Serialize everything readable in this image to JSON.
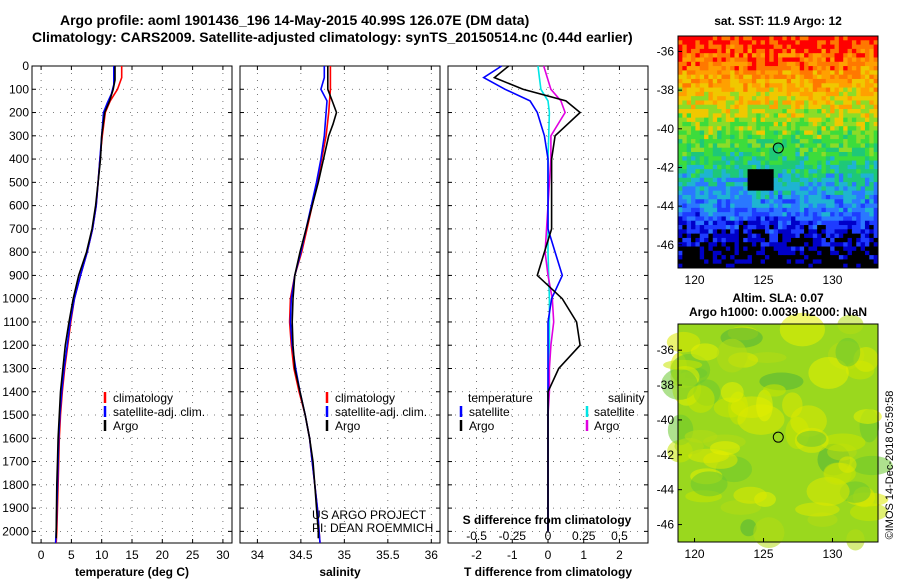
{
  "header": {
    "title_line1": "Argo profile: aoml 1901436_196 14-May-2015 40.99S 126.07E (DM data)",
    "title_line2": "Climatology: CARS2009. Satellite-adjusted climatology: synTS_20150514.nc (0.44d earlier)"
  },
  "depth_axis": {
    "ticks": [
      0,
      100,
      200,
      300,
      400,
      500,
      600,
      700,
      800,
      900,
      1000,
      1100,
      1200,
      1300,
      1400,
      1500,
      1600,
      1700,
      1800,
      1900,
      2000
    ],
    "range": [
      0,
      2050
    ],
    "inverted": true
  },
  "panels": {
    "temperature": {
      "xlabel": "temperature (deg C)",
      "xlim": [
        -1.5,
        31.5
      ],
      "xticks": [
        0,
        5,
        10,
        15,
        20,
        25,
        30
      ],
      "legend": [
        "climatology",
        "satellite-adj. clim.",
        "Argo"
      ],
      "credit_line1": "",
      "credit_line2": ""
    },
    "salinity": {
      "xlabel": "salinity",
      "xlim": [
        33.8,
        36.1
      ],
      "xticks": [
        34,
        34.5,
        35,
        35.5,
        36
      ],
      "legend": [
        "climatology",
        "satellite-adj. clim.",
        "Argo"
      ],
      "credit_line1": "US ARGO PROJECT",
      "credit_line2": "PI: DEAN ROEMMICH"
    },
    "difference": {
      "xlabel": "T difference from climatology",
      "xlim": [
        -2.8,
        2.8
      ],
      "xticks": [
        -2,
        -1,
        0,
        1,
        2
      ],
      "top_label": "S difference from climatology",
      "s_ticks": [
        "-0.5",
        "-0.25",
        "0",
        "0.25",
        "0.5"
      ],
      "legend_t_title": "temperature",
      "legend_s_title": "salinity",
      "legend_t": [
        "satellite",
        "Argo"
      ],
      "legend_s": [
        "satellite",
        "Argo"
      ]
    }
  },
  "maps": {
    "sst": {
      "title": "sat. SST: 11.9 Argo: 12",
      "lat_ticks": [
        -36,
        -38,
        -40,
        -42,
        -44,
        -46
      ],
      "lon_ticks": [
        120,
        125,
        130
      ],
      "lat_range": [
        -35.2,
        -47.2
      ],
      "lon_range": [
        118.8,
        133.3
      ],
      "argo_position": {
        "lat": -40.99,
        "lon": 126.07
      }
    },
    "sla": {
      "title_line1": "Altim. SLA: 0.07",
      "title_line2": "Argo h1000: 0.0039 h2000: NaN",
      "lat_ticks": [
        -36,
        -38,
        -40,
        -42,
        -44,
        -46
      ],
      "lon_ticks": [
        120,
        125,
        130
      ],
      "lat_range": [
        -34.5,
        -47
      ],
      "lon_range": [
        118.8,
        133.3
      ],
      "argo_position": {
        "lat": -40.99,
        "lon": 126.07
      }
    }
  },
  "timestamp": "©IMOS 14-Dec-2018 05:59:58",
  "colors": {
    "climatology": "#ff0000",
    "satellite": "#0000ff",
    "argo": "#000000",
    "sat_salinity": "#00e5e5",
    "argo_salinity": "#e000e0"
  },
  "chart_data": [
    {
      "type": "line",
      "title": "",
      "xlabel": "temperature (deg C)",
      "ylabel": "",
      "series": [
        {
          "name": "climatology",
          "points": [
            [
              13.3,
              0
            ],
            [
              13.3,
              50
            ],
            [
              12.6,
              100
            ],
            [
              11.4,
              150
            ],
            [
              10.6,
              200
            ],
            [
              10.1,
              300
            ],
            [
              9.7,
              400
            ],
            [
              9.4,
              500
            ],
            [
              9.1,
              600
            ],
            [
              8.5,
              700
            ],
            [
              7.6,
              800
            ],
            [
              6.5,
              900
            ],
            [
              5.5,
              1000
            ],
            [
              4.9,
              1100
            ],
            [
              4.4,
              1200
            ],
            [
              3.9,
              1300
            ],
            [
              3.5,
              1400
            ],
            [
              3.2,
              1500
            ],
            [
              3.0,
              1600
            ],
            [
              2.8,
              1800
            ],
            [
              2.6,
              2000
            ],
            [
              2.5,
              2050
            ]
          ]
        },
        {
          "name": "satellite-adj. clim.",
          "points": [
            [
              12.0,
              0
            ],
            [
              12.0,
              80
            ],
            [
              11.6,
              120
            ],
            [
              10.9,
              160
            ],
            [
              10.3,
              200
            ],
            [
              10.0,
              300
            ],
            [
              9.7,
              400
            ],
            [
              9.4,
              500
            ],
            [
              9.1,
              600
            ],
            [
              8.5,
              700
            ],
            [
              7.6,
              800
            ],
            [
              6.5,
              900
            ],
            [
              5.5,
              1000
            ],
            [
              4.8,
              1100
            ],
            [
              4.3,
              1200
            ],
            [
              3.8,
              1300
            ],
            [
              3.4,
              1400
            ],
            [
              3.1,
              1500
            ],
            [
              2.9,
              1600
            ],
            [
              2.7,
              1800
            ],
            [
              2.5,
              2000
            ],
            [
              2.4,
              2050
            ]
          ]
        },
        {
          "name": "Argo",
          "points": [
            [
              12.2,
              0
            ],
            [
              12.2,
              60
            ],
            [
              11.9,
              100
            ],
            [
              11.3,
              150
            ],
            [
              10.5,
              200
            ],
            [
              10.0,
              300
            ],
            [
              9.8,
              400
            ],
            [
              9.4,
              500
            ],
            [
              9.0,
              600
            ],
            [
              8.4,
              700
            ],
            [
              7.5,
              800
            ],
            [
              6.2,
              900
            ],
            [
              5.3,
              1000
            ],
            [
              4.6,
              1100
            ],
            [
              4.0,
              1200
            ],
            [
              3.6,
              1300
            ],
            [
              3.2,
              1400
            ],
            [
              3.0,
              1500
            ],
            [
              2.8,
              1600
            ],
            [
              2.7,
              1700
            ],
            [
              2.6,
              1800
            ],
            [
              2.5,
              2000
            ],
            [
              2.5,
              2030
            ]
          ]
        }
      ]
    },
    {
      "type": "line",
      "title": "",
      "xlabel": "salinity",
      "ylabel": "",
      "series": [
        {
          "name": "climatology",
          "points": [
            [
              34.84,
              0
            ],
            [
              34.84,
              100
            ],
            [
              34.82,
              200
            ],
            [
              34.79,
              300
            ],
            [
              34.74,
              400
            ],
            [
              34.69,
              500
            ],
            [
              34.63,
              600
            ],
            [
              34.57,
              700
            ],
            [
              34.51,
              800
            ],
            [
              34.43,
              900
            ],
            [
              34.38,
              1000
            ],
            [
              34.37,
              1100
            ],
            [
              34.39,
              1200
            ],
            [
              34.42,
              1300
            ],
            [
              34.48,
              1400
            ],
            [
              34.55,
              1500
            ],
            [
              34.6,
              1600
            ],
            [
              34.63,
              1700
            ],
            [
              34.66,
              1800
            ],
            [
              34.69,
              1900
            ],
            [
              34.71,
              2000
            ],
            [
              34.72,
              2050
            ]
          ]
        },
        {
          "name": "satellite-adj. clim.",
          "points": [
            [
              34.77,
              0
            ],
            [
              34.77,
              50
            ],
            [
              34.73,
              100
            ],
            [
              34.8,
              150
            ],
            [
              34.79,
              200
            ],
            [
              34.77,
              300
            ],
            [
              34.73,
              400
            ],
            [
              34.68,
              500
            ],
            [
              34.62,
              600
            ],
            [
              34.56,
              700
            ],
            [
              34.5,
              800
            ],
            [
              34.43,
              900
            ],
            [
              34.39,
              1000
            ],
            [
              34.38,
              1100
            ],
            [
              34.4,
              1200
            ],
            [
              34.44,
              1300
            ],
            [
              34.49,
              1400
            ],
            [
              34.55,
              1500
            ],
            [
              34.6,
              1600
            ],
            [
              34.63,
              1700
            ],
            [
              34.66,
              1800
            ],
            [
              34.69,
              1900
            ],
            [
              34.71,
              2000
            ],
            [
              34.72,
              2050
            ]
          ]
        },
        {
          "name": "Argo",
          "points": [
            [
              34.81,
              0
            ],
            [
              34.81,
              100
            ],
            [
              34.86,
              150
            ],
            [
              34.91,
              200
            ],
            [
              34.87,
              250
            ],
            [
              34.82,
              300
            ],
            [
              34.76,
              400
            ],
            [
              34.7,
              500
            ],
            [
              34.63,
              600
            ],
            [
              34.56,
              700
            ],
            [
              34.49,
              800
            ],
            [
              34.43,
              900
            ],
            [
              34.41,
              1000
            ],
            [
              34.4,
              1100
            ],
            [
              34.41,
              1200
            ],
            [
              34.43,
              1300
            ],
            [
              34.49,
              1400
            ],
            [
              34.55,
              1500
            ],
            [
              34.6,
              1600
            ],
            [
              34.64,
              1700
            ],
            [
              34.66,
              1800
            ],
            [
              34.68,
              1900
            ],
            [
              34.7,
              2000
            ],
            [
              34.7,
              2030
            ]
          ]
        }
      ]
    },
    {
      "type": "line",
      "title": "",
      "xlabel": "T difference from climatology",
      "ylabel": "",
      "series": [
        {
          "name": "satellite (temperature)",
          "points": [
            [
              -1.3,
              0
            ],
            [
              -1.8,
              50
            ],
            [
              -1.2,
              100
            ],
            [
              -0.5,
              150
            ],
            [
              -0.3,
              200
            ],
            [
              -0.1,
              300
            ],
            [
              0.0,
              400
            ],
            [
              0.0,
              500
            ],
            [
              0.0,
              600
            ],
            [
              0.0,
              700
            ],
            [
              0.2,
              800
            ],
            [
              0.4,
              900
            ],
            [
              0.1,
              1000
            ],
            [
              0.0,
              1100
            ],
            [
              0.0,
              1200
            ],
            [
              0.0,
              1300
            ],
            [
              0.0,
              1400
            ],
            [
              0.0,
              1500
            ],
            [
              0.0,
              1600
            ],
            [
              0.0,
              1700
            ],
            [
              0.0,
              1800
            ],
            [
              0.0,
              1900
            ],
            [
              0.0,
              2000
            ]
          ]
        },
        {
          "name": "Argo (temperature)",
          "points": [
            [
              -1.1,
              0
            ],
            [
              -1.5,
              50
            ],
            [
              -0.7,
              100
            ],
            [
              0.5,
              150
            ],
            [
              0.9,
              200
            ],
            [
              0.2,
              300
            ],
            [
              0.1,
              400
            ],
            [
              0.1,
              500
            ],
            [
              0.1,
              600
            ],
            [
              0.1,
              700
            ],
            [
              -0.1,
              800
            ],
            [
              -0.3,
              900
            ],
            [
              0.4,
              1000
            ],
            [
              0.8,
              1100
            ],
            [
              0.9,
              1200
            ],
            [
              0.3,
              1300
            ],
            [
              0.0,
              1400
            ],
            [
              0.0,
              1500
            ],
            [
              0.0,
              1600
            ],
            [
              0.0,
              1700
            ],
            [
              0.0,
              1800
            ],
            [
              0.0,
              1900
            ],
            [
              0.0,
              2000
            ]
          ]
        },
        {
          "name": "satellite (salinity, S-diff axis)",
          "points": [
            [
              -0.07,
              0
            ],
            [
              -0.06,
              50
            ],
            [
              -0.05,
              100
            ],
            [
              0.0,
              150
            ],
            [
              0.01,
              200
            ],
            [
              0.0,
              400
            ],
            [
              0.0,
              600
            ],
            [
              0.0,
              800
            ],
            [
              0.01,
              1000
            ],
            [
              0.01,
              1200
            ],
            [
              0.0,
              1400
            ],
            [
              0.0,
              1600
            ],
            [
              0.0,
              1800
            ],
            [
              0.0,
              2000
            ]
          ]
        },
        {
          "name": "Argo (salinity, S-diff axis)",
          "points": [
            [
              -0.03,
              0
            ],
            [
              0.02,
              100
            ],
            [
              0.09,
              150
            ],
            [
              0.12,
              200
            ],
            [
              0.02,
              300
            ],
            [
              0.02,
              400
            ],
            [
              0.01,
              500
            ],
            [
              0.0,
              600
            ],
            [
              -0.02,
              800
            ],
            [
              0.0,
              900
            ],
            [
              0.03,
              1000
            ],
            [
              0.04,
              1100
            ],
            [
              0.02,
              1200
            ],
            [
              0.01,
              1300
            ],
            [
              0.01,
              1400
            ],
            [
              0.0,
              1500
            ],
            [
              0.0,
              1600
            ],
            [
              0.0,
              1800
            ],
            [
              0.0,
              2000
            ]
          ]
        }
      ]
    }
  ]
}
